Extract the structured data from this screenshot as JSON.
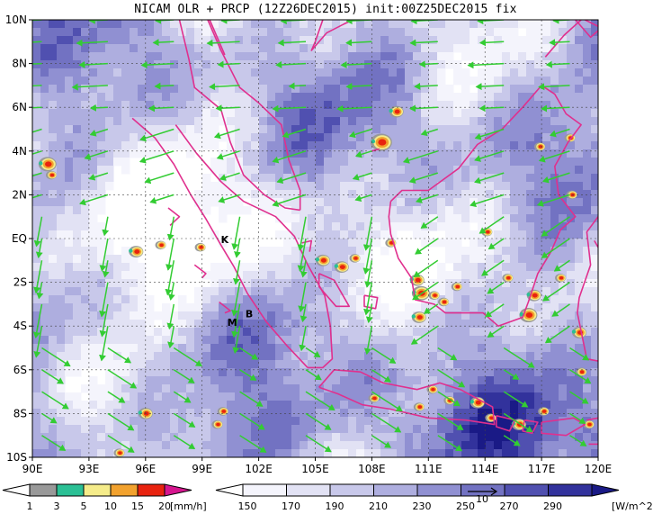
{
  "title": "NICAM OLR + PRCP (12Z26DEC2015) init:00Z25DEC2015 fix",
  "lat_labels": [
    "10N",
    "8N",
    "6N",
    "4N",
    "2N",
    "EQ",
    "2S",
    "4S",
    "6S",
    "8S",
    "10S"
  ],
  "lon_labels": [
    "90E",
    "93E",
    "96E",
    "99E",
    "102E",
    "105E",
    "108E",
    "111E",
    "114E",
    "117E",
    "120E"
  ],
  "lat_values": [
    10,
    8,
    6,
    4,
    2,
    0,
    -2,
    -4,
    -6,
    -8,
    -10
  ],
  "lon_values": [
    90,
    93,
    96,
    99,
    102,
    105,
    108,
    111,
    114,
    117,
    120
  ],
  "site_labels": [
    {
      "text": "K",
      "lon": 100.2,
      "lat": -0.2
    },
    {
      "text": "M",
      "lon": 100.6,
      "lat": -4.0
    },
    {
      "text": "B",
      "lon": 101.5,
      "lat": -3.6
    }
  ],
  "vector_label": "10",
  "prcp_scale": {
    "levels": [
      "1",
      "3",
      "5",
      "10",
      "15",
      "20"
    ],
    "unit": "[mm/h]",
    "colors": [
      "#999999",
      "#2bc095",
      "#f5ec8a",
      "#f2a22e",
      "#e8230f",
      "#d6168f"
    ]
  },
  "olr_scale": {
    "levels": [
      "150",
      "170",
      "190",
      "210",
      "230",
      "250",
      "270",
      "290"
    ],
    "unit": "[W/m^2]",
    "colors": [
      "#f4f4fc",
      "#e2e2f4",
      "#c8c8ea",
      "#aeaedf",
      "#9090d2",
      "#7272c2",
      "#5050b0",
      "#32329c",
      "#1a1a86"
    ]
  },
  "colors": {
    "coastline": "#e0308e",
    "wind_arrow": "#33cc33",
    "frame": "#000000",
    "grid": "#444444"
  },
  "layers": {
    "olr_field": "olr-shading",
    "wind_vectors": "wind-arrows",
    "coastlines": "coastlines"
  }
}
